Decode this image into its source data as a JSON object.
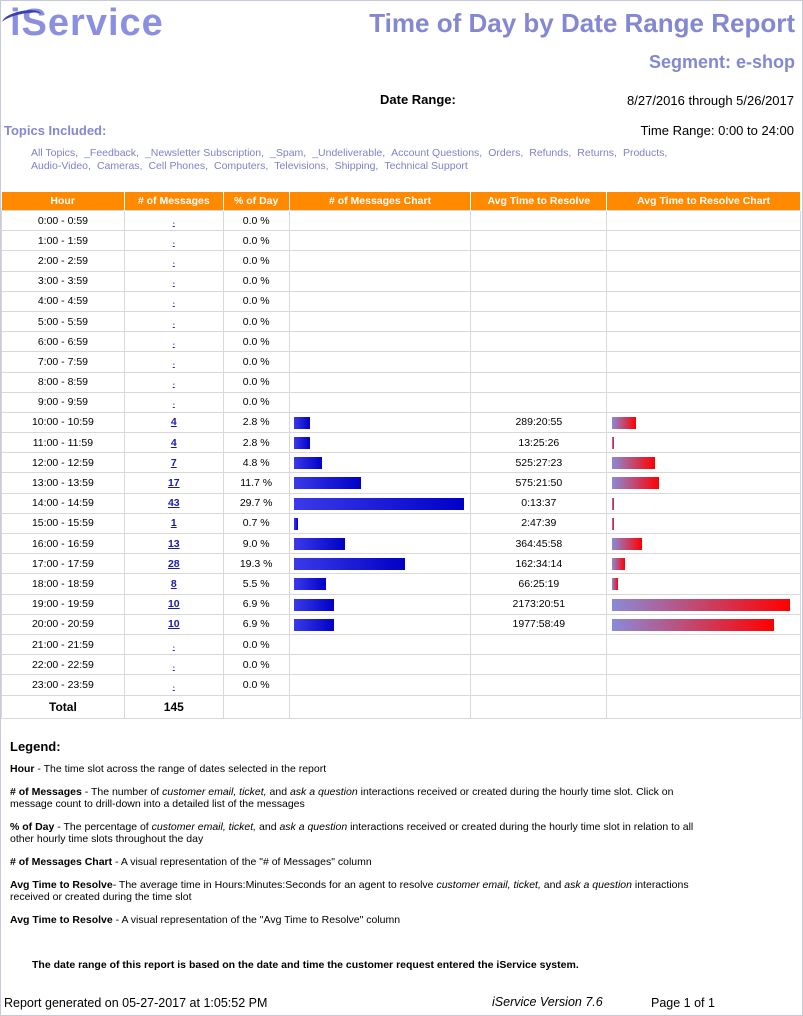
{
  "logo": "iService",
  "title": "Time of Day by Date Range Report",
  "segment": "Segment: e-shop",
  "date_range_label": "Date Range:",
  "date_range_value": "8/27/2016 through 5/26/2017",
  "topics_label": "Topics Included:",
  "time_range": "Time Range: 0:00 to 24:00",
  "topics": [
    "All Topics,",
    "_Feedback,",
    "_Newsletter Subscription,",
    "_Spam,",
    "_Undeliverable,",
    "Account Questions,",
    "Orders,",
    "Refunds,",
    "Returns,",
    "Products,",
    "Audio-Video,",
    "Cameras,",
    "Cell Phones,",
    "Computers,",
    "Televisions,",
    "Shipping,",
    "Technical Support"
  ],
  "headers": [
    "Hour",
    "# of Messages",
    "% of Day",
    "# of Messages Chart",
    "Avg Time to Resolve",
    "Avg Time to Resolve Chart"
  ],
  "rows": [
    {
      "hour": "0:00 - 0:59",
      "msgs": "-",
      "pct": "0.0 %",
      "resolve": "",
      "count": 0,
      "resolve_frac": 0
    },
    {
      "hour": "1:00 - 1:59",
      "msgs": "-",
      "pct": "0.0 %",
      "resolve": "",
      "count": 0,
      "resolve_frac": 0
    },
    {
      "hour": "2:00 - 2:59",
      "msgs": "-",
      "pct": "0.0 %",
      "resolve": "",
      "count": 0,
      "resolve_frac": 0
    },
    {
      "hour": "3:00 - 3:59",
      "msgs": "-",
      "pct": "0.0 %",
      "resolve": "",
      "count": 0,
      "resolve_frac": 0
    },
    {
      "hour": "4:00 - 4:59",
      "msgs": "-",
      "pct": "0.0 %",
      "resolve": "",
      "count": 0,
      "resolve_frac": 0
    },
    {
      "hour": "5:00 - 5:59",
      "msgs": "-",
      "pct": "0.0 %",
      "resolve": "",
      "count": 0,
      "resolve_frac": 0
    },
    {
      "hour": "6:00 - 6:59",
      "msgs": "-",
      "pct": "0.0 %",
      "resolve": "",
      "count": 0,
      "resolve_frac": 0
    },
    {
      "hour": "7:00 - 7:59",
      "msgs": "-",
      "pct": "0.0 %",
      "resolve": "",
      "count": 0,
      "resolve_frac": 0
    },
    {
      "hour": "8:00 - 8:59",
      "msgs": "-",
      "pct": "0.0 %",
      "resolve": "",
      "count": 0,
      "resolve_frac": 0
    },
    {
      "hour": "9:00 - 9:59",
      "msgs": "-",
      "pct": "0.0 %",
      "resolve": "",
      "count": 0,
      "resolve_frac": 0
    },
    {
      "hour": "10:00 - 10:59",
      "msgs": "4",
      "pct": "2.8 %",
      "resolve": "289:20:55",
      "count": 4,
      "resolve_frac": 0.133
    },
    {
      "hour": "11:00 - 11:59",
      "msgs": "4",
      "pct": "2.8 %",
      "resolve": "13:25:26",
      "count": 4,
      "resolve_frac": 0.006
    },
    {
      "hour": "12:00 - 12:59",
      "msgs": "7",
      "pct": "4.8 %",
      "resolve": "525:27:23",
      "count": 7,
      "resolve_frac": 0.242
    },
    {
      "hour": "13:00 - 13:59",
      "msgs": "17",
      "pct": "11.7 %",
      "resolve": "575:21:50",
      "count": 17,
      "resolve_frac": 0.265
    },
    {
      "hour": "14:00 - 14:59",
      "msgs": "43",
      "pct": "29.7 %",
      "resolve": "0:13:37",
      "count": 43,
      "resolve_frac": 0.003
    },
    {
      "hour": "15:00 - 15:59",
      "msgs": "1",
      "pct": "0.7 %",
      "resolve": "2:47:39",
      "count": 1,
      "resolve_frac": 0.003
    },
    {
      "hour": "16:00 - 16:59",
      "msgs": "13",
      "pct": "9.0 %",
      "resolve": "364:45:58",
      "count": 13,
      "resolve_frac": 0.168
    },
    {
      "hour": "17:00 - 17:59",
      "msgs": "28",
      "pct": "19.3 %",
      "resolve": "162:34:14",
      "count": 28,
      "resolve_frac": 0.075
    },
    {
      "hour": "18:00 - 18:59",
      "msgs": "8",
      "pct": "5.5 %",
      "resolve": "66:25:19",
      "count": 8,
      "resolve_frac": 0.031
    },
    {
      "hour": "19:00 - 19:59",
      "msgs": "10",
      "pct": "6.9 %",
      "resolve": "2173:20:51",
      "count": 10,
      "resolve_frac": 1.0
    },
    {
      "hour": "20:00 - 20:59",
      "msgs": "10",
      "pct": "6.9 %",
      "resolve": "1977:58:49",
      "count": 10,
      "resolve_frac": 0.91
    },
    {
      "hour": "21:00 - 21:59",
      "msgs": "-",
      "pct": "0.0 %",
      "resolve": "",
      "count": 0,
      "resolve_frac": 0
    },
    {
      "hour": "22:00 - 22:59",
      "msgs": "-",
      "pct": "0.0 %",
      "resolve": "",
      "count": 0,
      "resolve_frac": 0
    },
    {
      "hour": "23:00 - 23:59",
      "msgs": "-",
      "pct": "0.0 %",
      "resolve": "",
      "count": 0,
      "resolve_frac": 0
    }
  ],
  "total_label": "Total",
  "total_value": "145",
  "legend_title": "Legend:",
  "legend": [
    {
      "term": "Hour",
      "desc": " - The time slot across the range of dates selected in the report"
    },
    {
      "term": "# of Messages",
      "desc_html": " - The number of <i>customer email, ticket,</i> and <i>ask a question</i> interactions received or created during the hourly time slot. Click on message count to drill-down into a detailed list of the messages"
    },
    {
      "term": "% of Day",
      "desc_html": " - The percentage of <i>customer email, ticket,</i> and <i>ask a question</i> interactions received or created during the hourly time slot in relation to all other hourly time slots throughout the day"
    },
    {
      "term": "# of Messages Chart",
      "desc": " - A visual representation of the \"# of Messages\" column"
    },
    {
      "term": "Avg Time to Resolve",
      "desc_html": "- The average time in Hours:Minutes:Seconds for an agent to resolve <i>customer email, ticket,</i> and <i>ask a question</i> interactions received or created during the time slot"
    },
    {
      "term": "Avg Time to Resolve",
      "desc": " - A visual representation of the \"Avg Time to Resolve\" column"
    }
  ],
  "note": "The date range of this report is based on the date and time the customer request entered the iService system.",
  "footer_generated": "Report generated on 05-27-2017 at 1:05:52 PM",
  "footer_version": "iService Version 7.6",
  "footer_page": "Page 1 of 1",
  "colors": {
    "header_bg": "#ff8a00",
    "title": "#8487d2",
    "bar_blue": "#0000c8",
    "bar_red": "#ff0000"
  }
}
